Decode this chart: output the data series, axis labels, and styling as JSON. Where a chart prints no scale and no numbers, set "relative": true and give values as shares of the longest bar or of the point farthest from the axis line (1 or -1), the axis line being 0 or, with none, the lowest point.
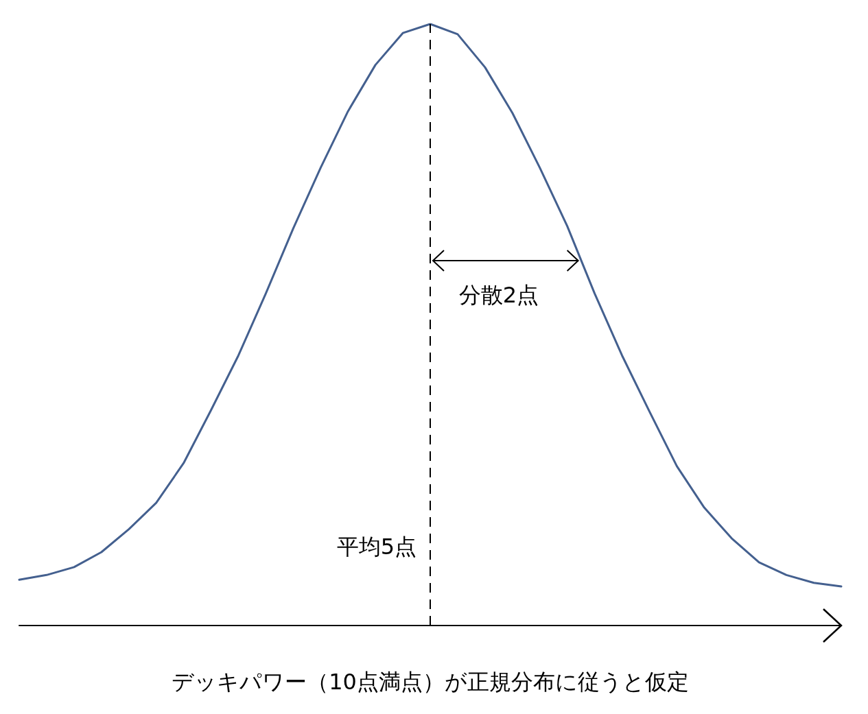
{
  "chart_data": {
    "type": "line",
    "relative": true,
    "marker": "none",
    "line_style": "solid",
    "xlabel": "デッキパワー（10点満点）が正規分布に従うと仮定",
    "categories": [
      null,
      null,
      null,
      null,
      null,
      null,
      null,
      null,
      null,
      null,
      null,
      null,
      null,
      null,
      null,
      null,
      null,
      null,
      null,
      null,
      null,
      null,
      null,
      null,
      null,
      null,
      null,
      null,
      null,
      null,
      null
    ],
    "series": [
      {
        "color": "#44608f",
        "values": [
          0.076,
          0.084,
          0.097,
          0.122,
          0.16,
          0.204,
          0.27,
          0.358,
          0.449,
          0.552,
          0.66,
          0.761,
          0.855,
          0.932,
          0.985,
          1,
          0.983,
          0.928,
          0.852,
          0.761,
          0.664,
          0.552,
          0.449,
          0.356,
          0.265,
          0.196,
          0.145,
          0.105,
          0.084,
          0.071,
          0.065
        ]
      }
    ],
    "ref_lines": [
      {
        "axis": "x",
        "label": "平均5点",
        "color": "#000000",
        "line_style": "dashed"
      }
    ],
    "annotations": [
      "分散2点"
    ]
  }
}
